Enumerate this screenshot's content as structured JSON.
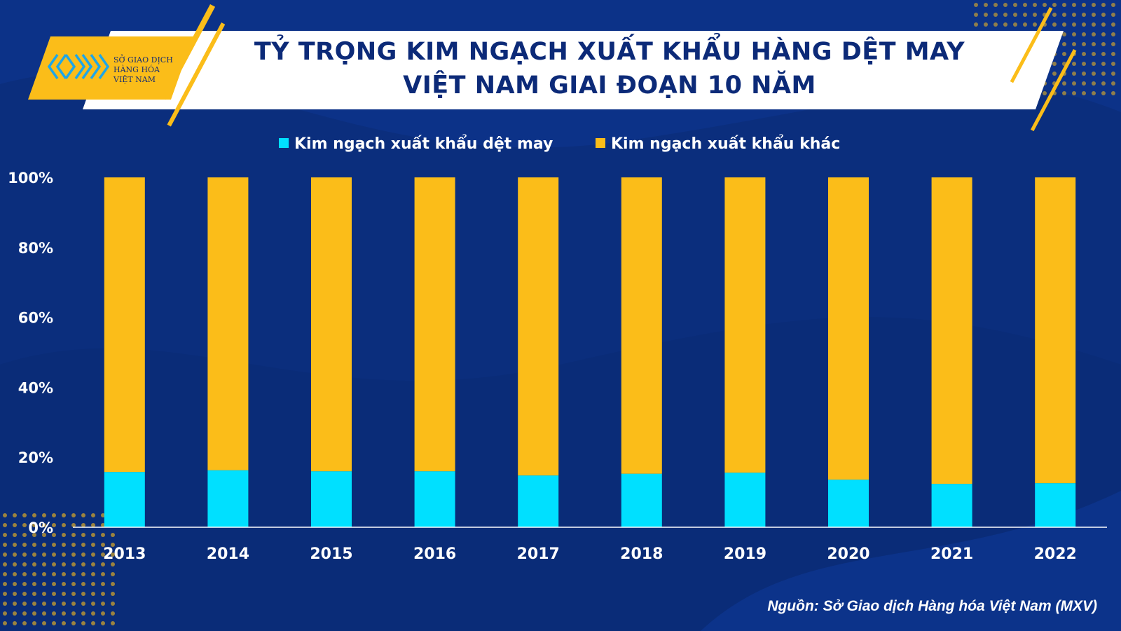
{
  "logo": {
    "line1": "SỞ GIAO DỊCH",
    "line2": "HÀNG HÓA",
    "line3": "VIỆT NAM",
    "icon": "mxv-logo-mark"
  },
  "colors": {
    "background": "#0b2e7d",
    "textile": "#00e0ff",
    "other": "#fbbd19",
    "title": "#0c2a78"
  },
  "source": "Nguồn: Sở Giao dịch Hàng hóa Việt Nam (MXV)",
  "chart_data": {
    "type": "bar",
    "stacked": true,
    "title": [
      "TỶ TRỌNG KIM NGẠCH XUẤT KHẨU HÀNG DỆT MAY",
      "VIỆT NAM GIAI ĐOẠN 10 NĂM"
    ],
    "categories": [
      "2013",
      "2014",
      "2015",
      "2016",
      "2017",
      "2018",
      "2019",
      "2020",
      "2021",
      "2022"
    ],
    "series": [
      {
        "name": "Kim ngạch xuất khẩu dệt may",
        "values": [
          15.8,
          16.3,
          16.0,
          16.0,
          14.8,
          15.3,
          15.6,
          13.6,
          12.4,
          12.6
        ]
      },
      {
        "name": "Kim ngạch xuất khẩu khác",
        "values": [
          84.2,
          83.7,
          84.0,
          84.0,
          85.2,
          84.7,
          84.4,
          86.4,
          87.6,
          87.4
        ]
      }
    ],
    "yticks": [
      "0%",
      "20%",
      "40%",
      "60%",
      "80%",
      "100%"
    ],
    "ylim": [
      0,
      100
    ],
    "grid": false,
    "legend": "top-center"
  }
}
